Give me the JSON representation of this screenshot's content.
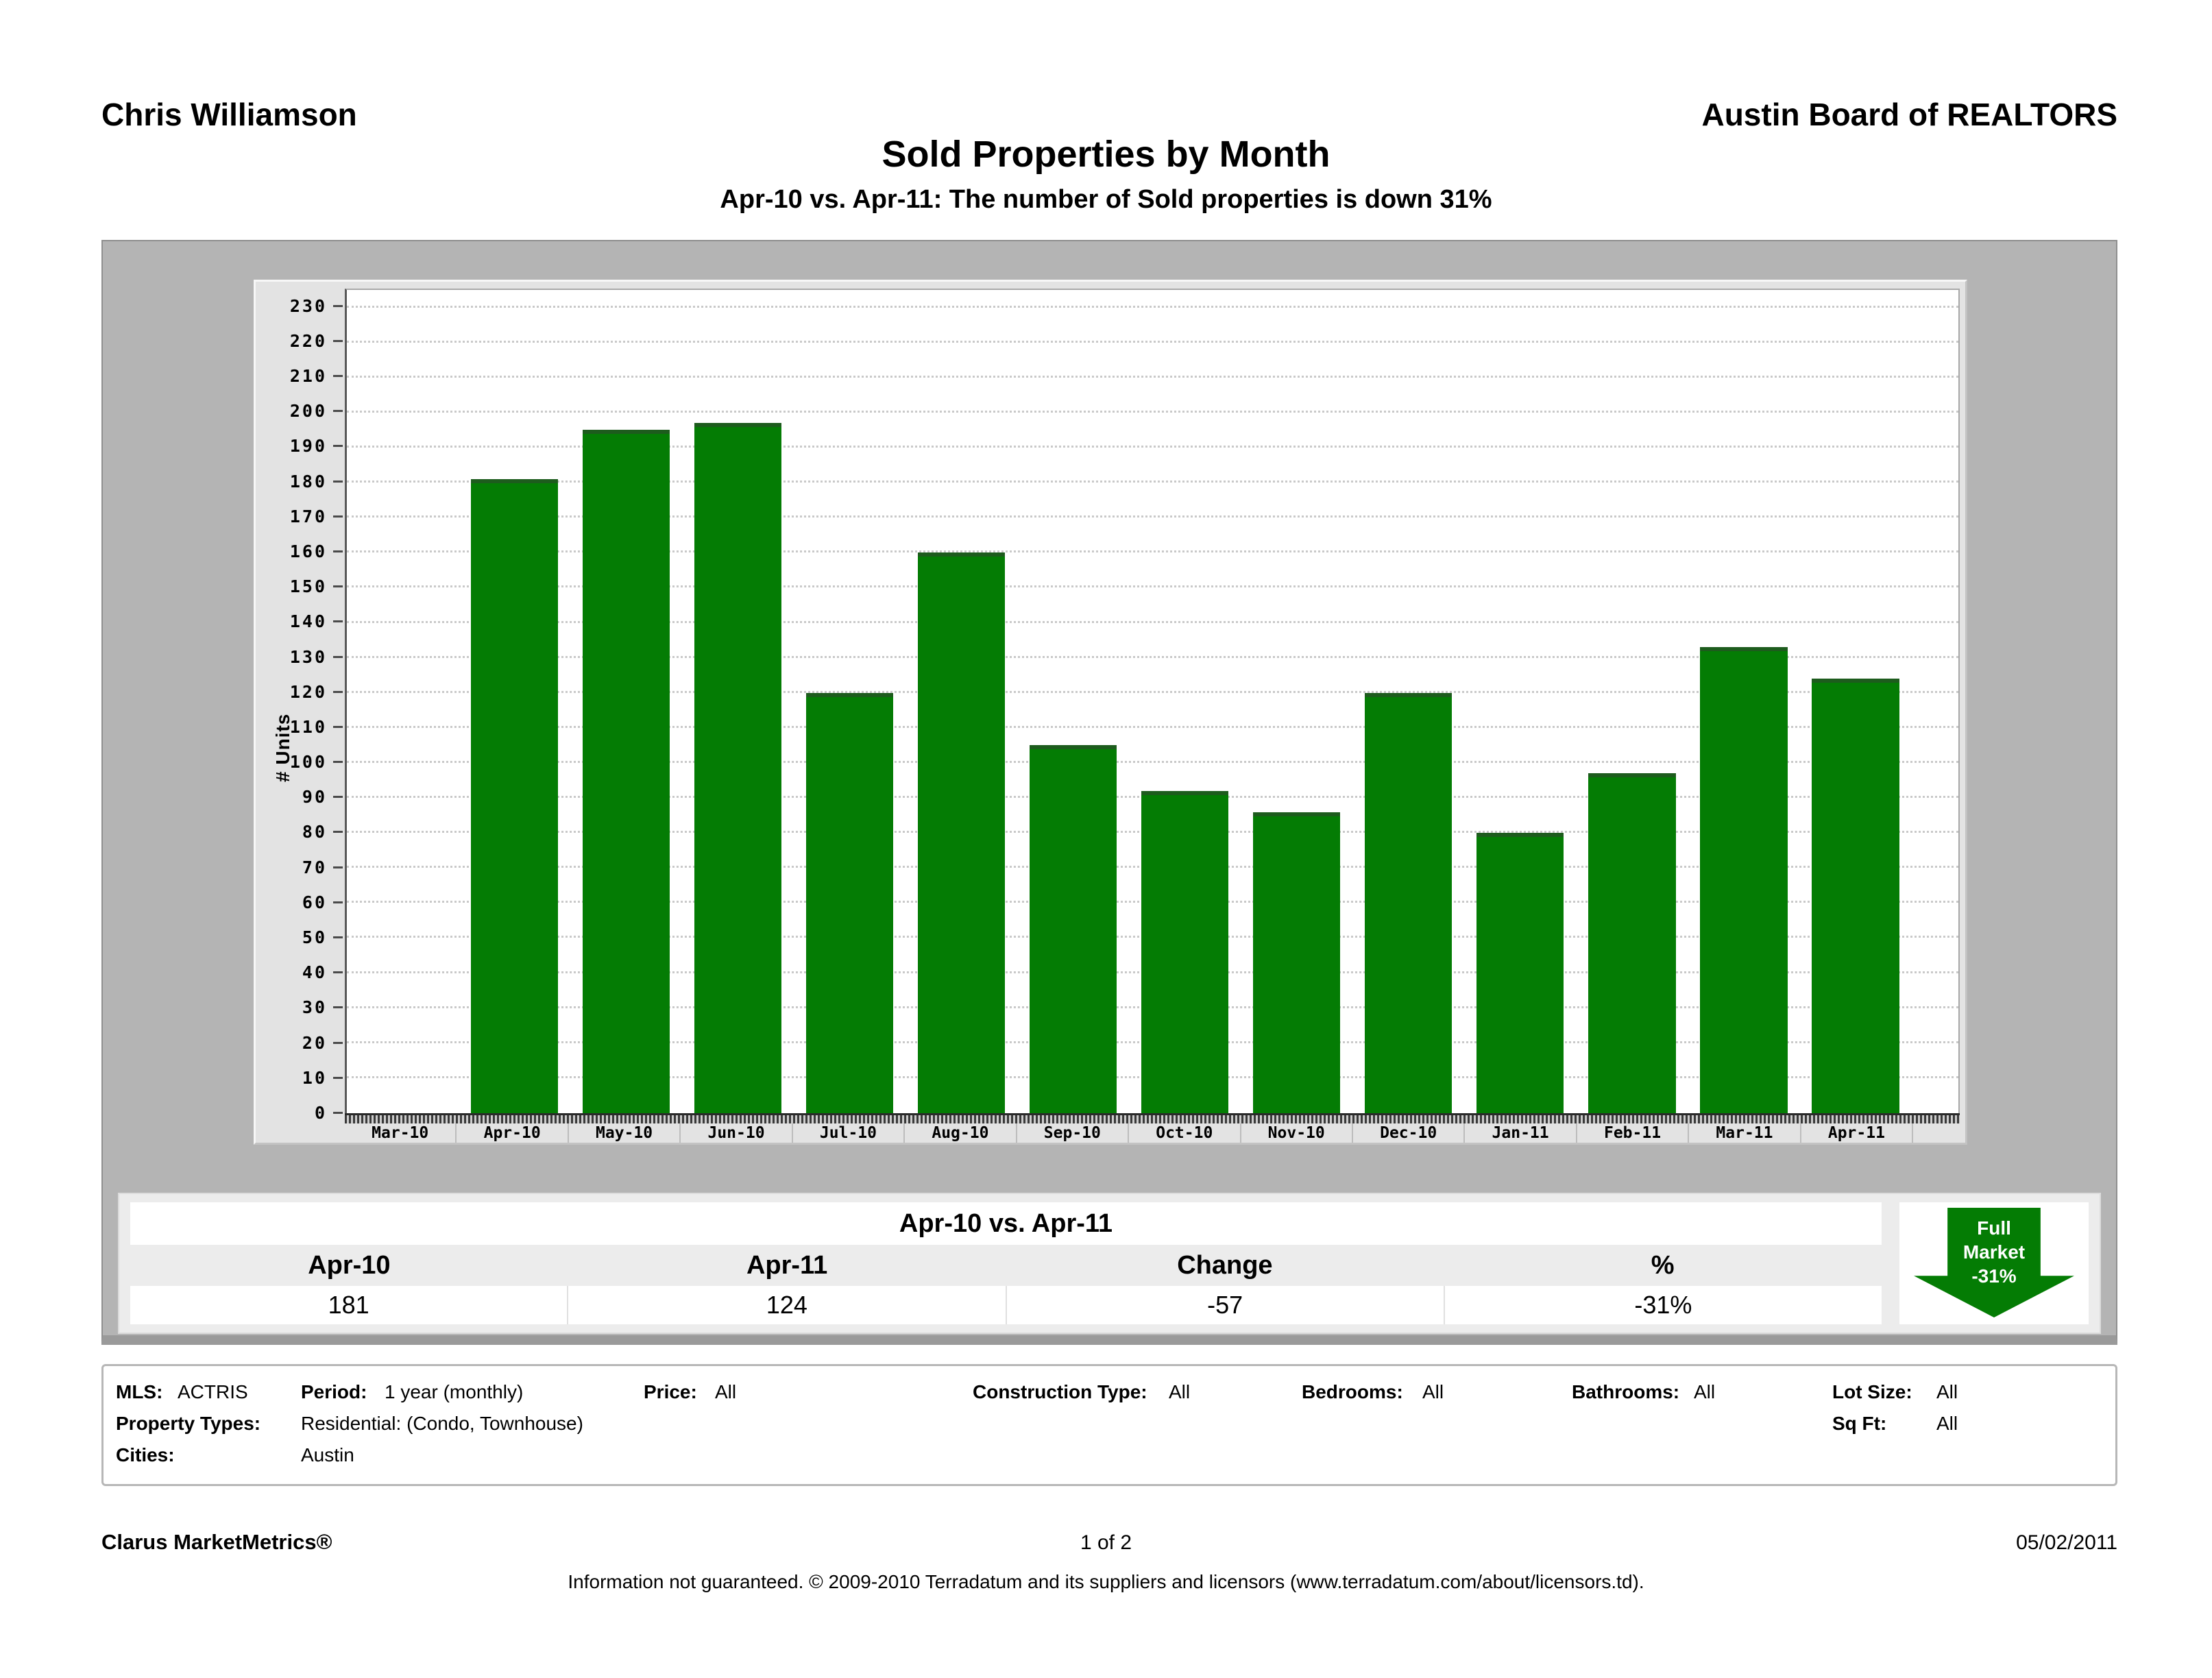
{
  "header": {
    "agent": "Chris Williamson",
    "org": "Austin Board of REALTORS",
    "title": "Sold Properties by Month",
    "subtitle": "Apr-10 vs. Apr-11: The number of Sold properties is down 31%"
  },
  "chart_data": {
    "type": "bar",
    "title": "Sold Properties by Month",
    "categories": [
      "Mar-10",
      "Apr-10",
      "May-10",
      "Jun-10",
      "Jul-10",
      "Aug-10",
      "Sep-10",
      "Oct-10",
      "Nov-10",
      "Dec-10",
      "Jan-11",
      "Feb-11",
      "Mar-11",
      "Apr-11"
    ],
    "values": [
      null,
      181,
      195,
      197,
      120,
      160,
      105,
      92,
      86,
      120,
      80,
      97,
      133,
      124
    ],
    "xlabel": "",
    "ylabel": "# Units",
    "ylim": [
      0,
      235
    ],
    "ytick_step": 10,
    "ytick_max": 230,
    "grid": true,
    "legend": null,
    "bar_color": "#047c04",
    "bar_cap_color": "#1d5c1d"
  },
  "comparison_table": {
    "title": "Apr-10 vs. Apr-11",
    "columns": [
      "Apr-10",
      "Apr-11",
      "Change",
      "%"
    ],
    "values": [
      "181",
      "124",
      "-57",
      "-31%"
    ]
  },
  "badge": {
    "line1": "Full",
    "line2": "Market",
    "line3": "-31%",
    "color": "#047c04"
  },
  "filters": {
    "mls_label": "MLS:",
    "mls_value": "ACTRIS",
    "period_label": "Period:",
    "period_value": "1 year (monthly)",
    "price_label": "Price:",
    "price_value": "All",
    "construction_label": "Construction Type:",
    "construction_value": "All",
    "bedrooms_label": "Bedrooms:",
    "bedrooms_value": "All",
    "bathrooms_label": "Bathrooms:",
    "bathrooms_value": "All",
    "lot_label": "Lot Size:",
    "lot_value": "All",
    "sqft_label": "Sq Ft:",
    "sqft_value": "All",
    "property_types_label": "Property Types:",
    "property_types_value": "Residential: (Condo, Townhouse)",
    "cities_label": "Cities:",
    "cities_value": "Austin"
  },
  "footer": {
    "brand": "Clarus MarketMetrics®",
    "page": "1 of 2",
    "date": "05/02/2011",
    "disclaimer": "Information not guaranteed.  © 2009-2010 Terradatum and its suppliers and licensors (www.terradatum.com/about/licensors.td)."
  }
}
